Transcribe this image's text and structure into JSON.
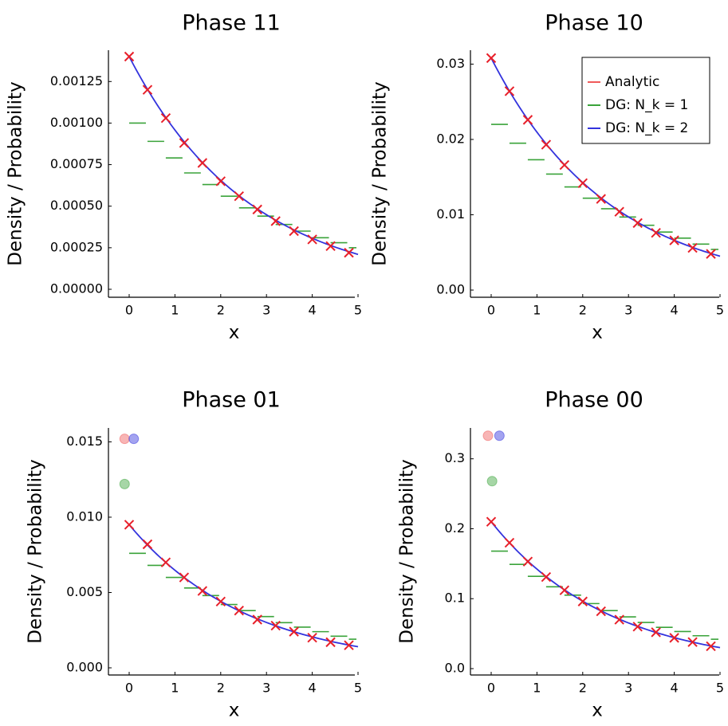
{
  "chart_data": [
    {
      "type": "line",
      "title": "Phase 11",
      "xlabel": "x",
      "ylabel": "Density / Probability",
      "xlim": [
        0,
        5
      ],
      "ylim": [
        0,
        0.0014
      ],
      "x_ticks": [
        "0",
        "1",
        "2",
        "3",
        "4",
        "5"
      ],
      "y_ticks": [
        "0.00000",
        "0.00025",
        "0.00050",
        "0.00075",
        "0.00100",
        "0.00125"
      ],
      "series": [
        {
          "name": "Analytic",
          "color": "#f05a5a",
          "type": "markers-x",
          "x": [
            0,
            0.4,
            0.8,
            1.2,
            1.6,
            2.0,
            2.4,
            2.8,
            3.2,
            3.6,
            4.0,
            4.4,
            4.8
          ],
          "values": [
            0.0014,
            0.0012,
            0.00103,
            0.00088,
            0.00076,
            0.00065,
            0.00056,
            0.00048,
            0.00041,
            0.00035,
            0.0003,
            0.00026,
            0.00022
          ]
        },
        {
          "name": "DG: N_k = 1",
          "color": "#3aa33a",
          "type": "steps",
          "x_start": [
            0,
            0.4,
            0.8,
            1.2,
            1.6,
            2.0,
            2.4,
            2.8,
            3.2,
            3.6,
            4.0,
            4.4,
            4.8
          ],
          "x_end": [
            0.4,
            0.8,
            1.2,
            1.6,
            2.0,
            2.4,
            2.8,
            3.2,
            3.6,
            4.0,
            4.4,
            4.8,
            5.0
          ],
          "values": [
            0.001,
            0.00089,
            0.00079,
            0.0007,
            0.00063,
            0.00056,
            0.00049,
            0.00044,
            0.00039,
            0.00035,
            0.00031,
            0.00028,
            0.00025
          ]
        },
        {
          "name": "DG: N_k = 2",
          "color": "#3333dd",
          "type": "curve",
          "y0": 0.0014,
          "y_end": 0.00021
        }
      ]
    },
    {
      "type": "line",
      "title": "Phase 10",
      "xlabel": "x",
      "ylabel": "Density / Probability",
      "xlim": [
        0,
        5
      ],
      "ylim": [
        0,
        0.031
      ],
      "x_ticks": [
        "0",
        "1",
        "2",
        "3",
        "4",
        "5"
      ],
      "y_ticks": [
        "0.00",
        "0.01",
        "0.02",
        "0.03"
      ],
      "series": [
        {
          "name": "Analytic",
          "color": "#f05a5a",
          "type": "markers-x",
          "x": [
            0,
            0.4,
            0.8,
            1.2,
            1.6,
            2.0,
            2.4,
            2.8,
            3.2,
            3.6,
            4.0,
            4.4,
            4.8
          ],
          "values": [
            0.0308,
            0.0264,
            0.0226,
            0.0193,
            0.0166,
            0.0142,
            0.0121,
            0.0104,
            0.0089,
            0.0076,
            0.0066,
            0.0056,
            0.0048
          ]
        },
        {
          "name": "DG: N_k = 1",
          "color": "#3aa33a",
          "type": "steps",
          "x_start": [
            0,
            0.4,
            0.8,
            1.2,
            1.6,
            2.0,
            2.4,
            2.8,
            3.2,
            3.6,
            4.0,
            4.4,
            4.8
          ],
          "x_end": [
            0.4,
            0.8,
            1.2,
            1.6,
            2.0,
            2.4,
            2.8,
            3.2,
            3.6,
            4.0,
            4.4,
            4.8,
            5.0
          ],
          "values": [
            0.022,
            0.0195,
            0.0173,
            0.0154,
            0.0137,
            0.0122,
            0.0108,
            0.0097,
            0.0086,
            0.0077,
            0.0069,
            0.0061,
            0.0054
          ]
        },
        {
          "name": "DG: N_k = 2",
          "color": "#3333dd",
          "type": "curve",
          "y0": 0.0308,
          "y_end": 0.0045
        }
      ],
      "legend": {
        "position": "top-right",
        "entries": [
          "Analytic",
          "DG: N_k = 1",
          "DG: N_k = 2"
        ]
      }
    },
    {
      "type": "line",
      "title": "Phase 01",
      "xlabel": "x",
      "ylabel": "Density / Probability",
      "xlim": [
        0,
        5
      ],
      "ylim": [
        0,
        0.0155
      ],
      "x_ticks": [
        "0",
        "1",
        "2",
        "3",
        "4",
        "5"
      ],
      "y_ticks": [
        "0.000",
        "0.005",
        "0.010",
        "0.015"
      ],
      "points": [
        {
          "series": "Analytic",
          "color": "#f05a5a",
          "x": -0.1,
          "value": 0.0152
        },
        {
          "series": "DG: N_k = 2",
          "color": "#3333dd",
          "x": 0.1,
          "value": 0.0152
        },
        {
          "series": "DG: N_k = 1",
          "color": "#3aa33a",
          "x": -0.1,
          "value": 0.0122
        }
      ],
      "series": [
        {
          "name": "Analytic",
          "color": "#f05a5a",
          "type": "markers-x",
          "x": [
            0,
            0.4,
            0.8,
            1.2,
            1.6,
            2.0,
            2.4,
            2.8,
            3.2,
            3.6,
            4.0,
            4.4,
            4.8
          ],
          "values": [
            0.0095,
            0.0082,
            0.007,
            0.006,
            0.0051,
            0.0044,
            0.0038,
            0.0032,
            0.0028,
            0.0024,
            0.002,
            0.0017,
            0.0015
          ]
        },
        {
          "name": "DG: N_k = 1",
          "color": "#3aa33a",
          "type": "steps",
          "x_start": [
            0,
            0.4,
            0.8,
            1.2,
            1.6,
            2.0,
            2.4,
            2.8,
            3.2,
            3.6,
            4.0,
            4.4,
            4.8
          ],
          "x_end": [
            0.4,
            0.8,
            1.2,
            1.6,
            2.0,
            2.4,
            2.8,
            3.2,
            3.6,
            4.0,
            4.4,
            4.8,
            5.0
          ],
          "values": [
            0.0076,
            0.0068,
            0.006,
            0.0053,
            0.0048,
            0.0042,
            0.0038,
            0.0034,
            0.003,
            0.0027,
            0.0024,
            0.0021,
            0.0019
          ]
        },
        {
          "name": "DG: N_k = 2",
          "color": "#3333dd",
          "type": "curve",
          "y0": 0.0095,
          "y_end": 0.0014
        }
      ]
    },
    {
      "type": "line",
      "title": "Phase 00",
      "xlabel": "x",
      "ylabel": "Density / Probability",
      "xlim": [
        0,
        5
      ],
      "ylim": [
        0,
        0.335
      ],
      "x_ticks": [
        "0",
        "1",
        "2",
        "3",
        "4",
        "5"
      ],
      "y_ticks": [
        "0.0",
        "0.1",
        "0.2",
        "0.3"
      ],
      "points": [
        {
          "series": "Analytic",
          "color": "#f05a5a",
          "x": -0.07,
          "value": 0.333
        },
        {
          "series": "DG: N_k = 2",
          "color": "#3333dd",
          "x": 0.18,
          "value": 0.333
        },
        {
          "series": "DG: N_k = 1",
          "color": "#3aa33a",
          "x": 0.02,
          "value": 0.268
        }
      ],
      "series": [
        {
          "name": "Analytic",
          "color": "#f05a5a",
          "type": "markers-x",
          "x": [
            0,
            0.4,
            0.8,
            1.2,
            1.6,
            2.0,
            2.4,
            2.8,
            3.2,
            3.6,
            4.0,
            4.4,
            4.8
          ],
          "values": [
            0.21,
            0.18,
            0.153,
            0.131,
            0.112,
            0.096,
            0.082,
            0.07,
            0.06,
            0.052,
            0.044,
            0.038,
            0.032
          ]
        },
        {
          "name": "DG: N_k = 1",
          "color": "#3aa33a",
          "type": "steps",
          "x_start": [
            0,
            0.4,
            0.8,
            1.2,
            1.6,
            2.0,
            2.4,
            2.8,
            3.2,
            3.6,
            4.0,
            4.4,
            4.8
          ],
          "x_end": [
            0.4,
            0.8,
            1.2,
            1.6,
            2.0,
            2.4,
            2.8,
            3.2,
            3.6,
            4.0,
            4.4,
            4.8,
            5.0
          ],
          "values": [
            0.168,
            0.149,
            0.132,
            0.117,
            0.105,
            0.093,
            0.083,
            0.074,
            0.066,
            0.059,
            0.053,
            0.047,
            0.042
          ]
        },
        {
          "name": "DG: N_k = 2",
          "color": "#3333dd",
          "type": "curve",
          "y0": 0.21,
          "y_end": 0.03
        }
      ]
    }
  ]
}
